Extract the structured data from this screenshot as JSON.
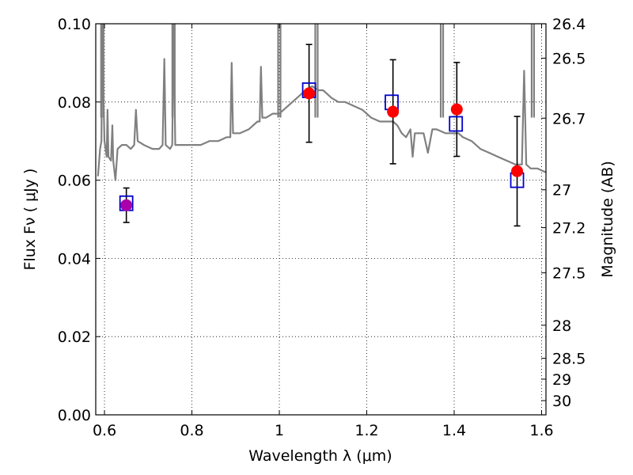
{
  "chart_data": {
    "type": "scatter",
    "title": "",
    "xlabel": "Wavelength  λ (μm)",
    "ylabel": "Flux  Fν  ( μJy )",
    "y2label": "Magnitude (AB)",
    "xlim": [
      0.58,
      1.61
    ],
    "ylim": [
      0.0,
      0.1
    ],
    "grid": true,
    "x_ticks": [
      0.6,
      0.8,
      1.0,
      1.2,
      1.4,
      1.6
    ],
    "x_tick_labels": [
      "0.6",
      "0.8",
      "1",
      "1.2",
      "1.4",
      "1.6"
    ],
    "y_ticks": [
      0.0,
      0.02,
      0.04,
      0.06,
      0.08,
      0.1
    ],
    "y_tick_labels": [
      "0.00",
      "0.02",
      "0.04",
      "0.06",
      "0.08",
      "0.10"
    ],
    "y2_ticks": [
      26.4,
      26.5,
      26.7,
      27,
      27.2,
      27.5,
      28,
      28.5,
      29,
      30
    ],
    "y2_tick_labels": [
      "26.4",
      "26.5",
      "26.7",
      "27",
      "27.2",
      "27.5",
      "28",
      "28.5",
      "29",
      "30"
    ],
    "series": [
      {
        "kind": "model-spectrum",
        "color": "#808080",
        "points": [
          [
            0.585,
            0.061
          ],
          [
            0.59,
            0.068
          ],
          [
            0.593,
            0.07
          ],
          [
            0.595,
            0.1
          ],
          [
            0.597,
            0.085
          ],
          [
            0.6,
            0.07
          ],
          [
            0.605,
            0.066
          ],
          [
            0.607,
            0.078
          ],
          [
            0.609,
            0.066
          ],
          [
            0.615,
            0.065
          ],
          [
            0.618,
            0.074
          ],
          [
            0.62,
            0.065
          ],
          [
            0.625,
            0.06
          ],
          [
            0.63,
            0.068
          ],
          [
            0.64,
            0.069
          ],
          [
            0.65,
            0.069
          ],
          [
            0.66,
            0.068
          ],
          [
            0.668,
            0.069
          ],
          [
            0.672,
            0.078
          ],
          [
            0.676,
            0.07
          ],
          [
            0.69,
            0.069
          ],
          [
            0.71,
            0.068
          ],
          [
            0.725,
            0.068
          ],
          [
            0.733,
            0.069
          ],
          [
            0.737,
            0.091
          ],
          [
            0.74,
            0.069
          ],
          [
            0.75,
            0.068
          ],
          [
            0.755,
            0.069
          ],
          [
            0.758,
            0.1
          ],
          [
            0.762,
            0.069
          ],
          [
            0.78,
            0.069
          ],
          [
            0.8,
            0.069
          ],
          [
            0.82,
            0.069
          ],
          [
            0.84,
            0.07
          ],
          [
            0.86,
            0.07
          ],
          [
            0.88,
            0.071
          ],
          [
            0.888,
            0.071
          ],
          [
            0.891,
            0.09
          ],
          [
            0.894,
            0.072
          ],
          [
            0.91,
            0.072
          ],
          [
            0.93,
            0.073
          ],
          [
            0.95,
            0.075
          ],
          [
            0.955,
            0.075
          ],
          [
            0.958,
            0.089
          ],
          [
            0.961,
            0.076
          ],
          [
            0.97,
            0.076
          ],
          [
            0.985,
            0.077
          ],
          [
            1.0,
            0.077
          ],
          [
            1.02,
            0.079
          ],
          [
            1.04,
            0.081
          ],
          [
            1.06,
            0.083
          ],
          [
            1.075,
            0.084
          ],
          [
            1.09,
            0.083
          ],
          [
            1.1,
            0.083
          ],
          [
            1.11,
            0.082
          ],
          [
            1.12,
            0.081
          ],
          [
            1.135,
            0.08
          ],
          [
            1.15,
            0.08
          ],
          [
            1.17,
            0.079
          ],
          [
            1.19,
            0.078
          ],
          [
            1.21,
            0.076
          ],
          [
            1.23,
            0.075
          ],
          [
            1.245,
            0.075
          ],
          [
            1.26,
            0.075
          ],
          [
            1.27,
            0.074
          ],
          [
            1.28,
            0.072
          ],
          [
            1.29,
            0.071
          ],
          [
            1.3,
            0.073
          ],
          [
            1.305,
            0.066
          ],
          [
            1.31,
            0.072
          ],
          [
            1.32,
            0.072
          ],
          [
            1.33,
            0.072
          ],
          [
            1.34,
            0.067
          ],
          [
            1.35,
            0.073
          ],
          [
            1.36,
            0.073
          ],
          [
            1.38,
            0.072
          ],
          [
            1.395,
            0.072
          ],
          [
            1.41,
            0.072
          ],
          [
            1.42,
            0.071
          ],
          [
            1.44,
            0.07
          ],
          [
            1.46,
            0.068
          ],
          [
            1.48,
            0.067
          ],
          [
            1.5,
            0.066
          ],
          [
            1.52,
            0.065
          ],
          [
            1.54,
            0.064
          ],
          [
            1.555,
            0.064
          ],
          [
            1.56,
            0.088
          ],
          [
            1.565,
            0.064
          ],
          [
            1.575,
            0.063
          ],
          [
            1.59,
            0.063
          ],
          [
            1.61,
            0.062
          ]
        ],
        "spikes": [
          [
            0.595,
            0.1
          ],
          [
            0.758,
            0.1
          ],
          [
            1.0,
            0.1
          ],
          [
            1.085,
            0.1
          ],
          [
            1.372,
            0.1
          ],
          [
            1.58,
            0.1
          ]
        ]
      },
      {
        "kind": "model-photometry",
        "marker": "square",
        "color": "#0000cc",
        "points": [
          [
            0.65,
            0.0541
          ],
          [
            1.068,
            0.083
          ],
          [
            1.257,
            0.0799
          ],
          [
            1.404,
            0.0744
          ],
          [
            1.544,
            0.06
          ]
        ]
      },
      {
        "kind": "observed-photometry",
        "marker": "circle",
        "color": "#ff0000",
        "points": [
          [
            0.65,
            0.0536
          ],
          [
            1.068,
            0.0822
          ],
          [
            1.26,
            0.0775
          ],
          [
            1.406,
            0.0781
          ],
          [
            1.544,
            0.0623
          ]
        ],
        "error": [
          0.0044,
          0.0125,
          0.0133,
          0.012,
          0.014
        ]
      }
    ]
  }
}
